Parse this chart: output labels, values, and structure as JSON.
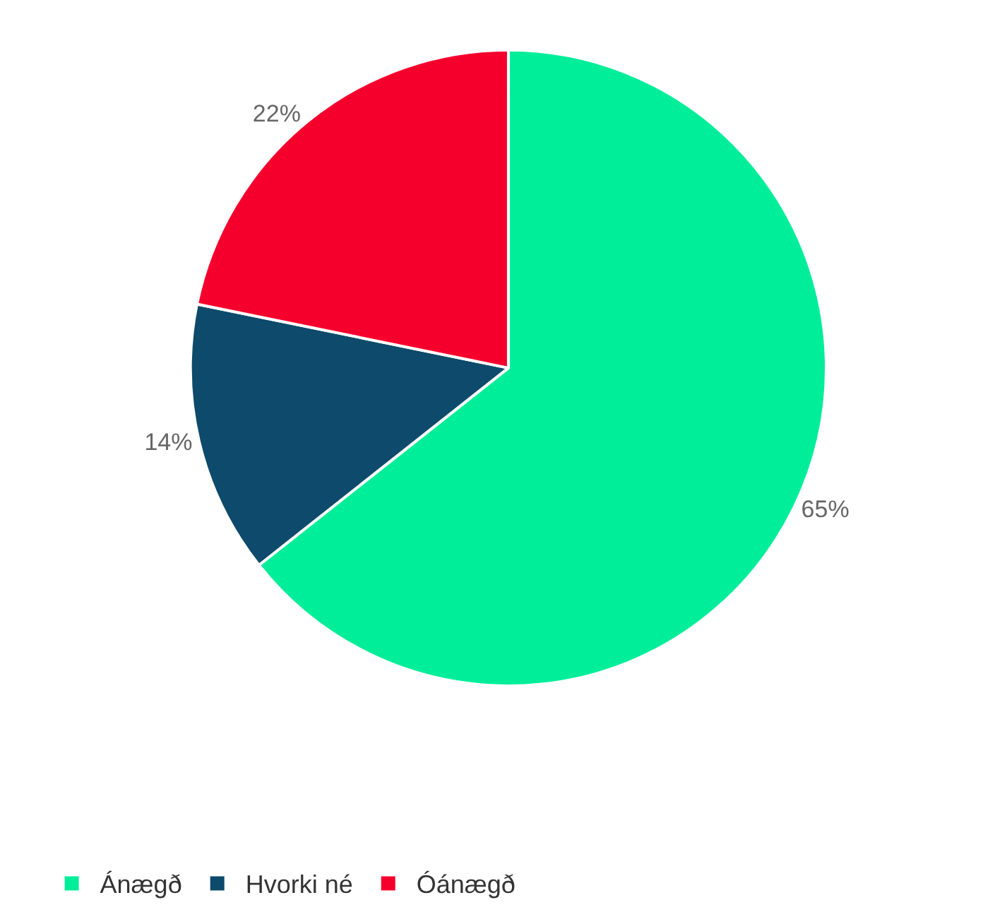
{
  "chart_data": {
    "type": "pie",
    "categories": [
      "Ánægð",
      "Hvorki né",
      "Óánægð"
    ],
    "values": [
      65,
      14,
      22
    ],
    "colors": [
      "#00ee99",
      "#0d4a6b",
      "#f5002d"
    ],
    "value_labels": [
      "65%",
      "14%",
      "22%"
    ],
    "legend": "bottom left"
  }
}
